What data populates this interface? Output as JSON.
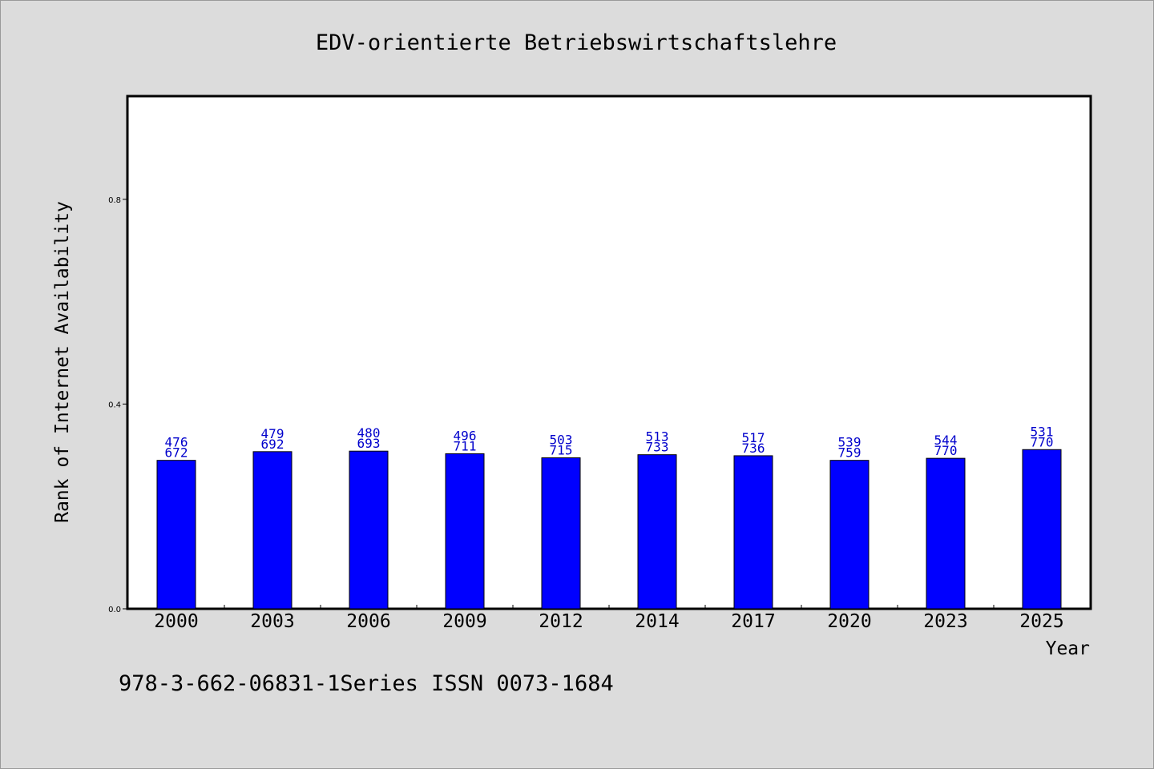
{
  "chart_data": {
    "type": "bar",
    "title": "EDV-orientierte Betriebswirtschaftslehre",
    "xlabel": "Year",
    "ylabel": "Rank of Internet Availability",
    "footer": "978-3-662-06831-1Series ISSN 0073-1684",
    "categories": [
      "2000",
      "2003",
      "2006",
      "2009",
      "2012",
      "2014",
      "2017",
      "2020",
      "2023",
      "2025"
    ],
    "values": [
      0.29,
      0.307,
      0.308,
      0.303,
      0.295,
      0.301,
      0.299,
      0.29,
      0.294,
      0.311
    ],
    "labels_top": [
      "476",
      "479",
      "480",
      "496",
      "503",
      "513",
      "517",
      "539",
      "544",
      "531"
    ],
    "labels_bottom": [
      "672",
      "692",
      "693",
      "711",
      "715",
      "733",
      "736",
      "759",
      "770",
      "770"
    ],
    "ylim": [
      0,
      1.0
    ],
    "yticks": [
      0.0,
      0.4,
      0.8
    ],
    "ytick_labels": [
      "0.0",
      "0.4",
      "0.8"
    ],
    "grid": false,
    "legend": "none",
    "colors": {
      "bar": "#0000ff",
      "label": "#0000cc",
      "background": "#dcdcdc",
      "plot": "#ffffff"
    }
  }
}
